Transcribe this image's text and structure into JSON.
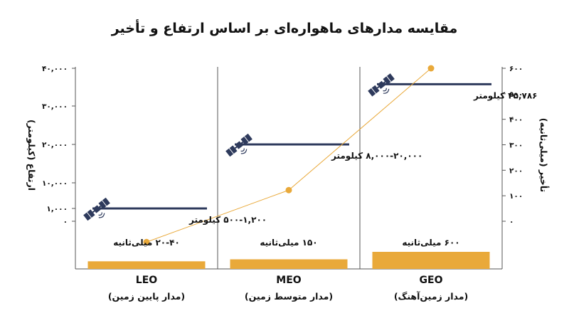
{
  "chart_data": {
    "type": "bar",
    "title": "مقایسه مدارهای ماهواره‌ای بر اساس ارتفاع و تأخیر",
    "left_axis": {
      "label": "ارتفاع (کیلومتر)",
      "ticks": [
        0,
        1000,
        10000,
        20000,
        30000,
        40000
      ],
      "tick_labels": [
        "۰",
        "۱,۰۰۰",
        "۱۰,۰۰۰",
        "۲۰,۰۰۰",
        "۳۰,۰۰۰",
        "۴۰,۰۰۰"
      ],
      "ylim": [
        0,
        40000
      ]
    },
    "right_axis": {
      "label": "تأخیر (میلی‌ثانیه)",
      "ticks": [
        0,
        100,
        200,
        300,
        400,
        500,
        600
      ],
      "tick_labels": [
        "۰",
        "۱۰۰",
        "۲۰۰",
        "۳۰۰",
        "۴۰۰",
        "۵۰۰",
        "۶۰۰"
      ],
      "ylim": [
        0,
        600
      ]
    },
    "categories": [
      {
        "name": "LEO",
        "subtitle": "(مدار پایین زمین)",
        "altitude_km": 1000,
        "altitude_label": "۵۰۰-۱,۲۰۰ کیلومتر",
        "latency_ms": 30,
        "latency_label": "۲۰-۴۰ میلی‌ثانیه"
      },
      {
        "name": "MEO",
        "subtitle": "(مدار متوسط زمین)",
        "altitude_km": 20000,
        "altitude_label": "۸,۰۰۰-۲۰,۰۰۰ کیلومتر",
        "latency_ms": 150,
        "latency_label": "۱۵۰ میلی‌ثانیه"
      },
      {
        "name": "GEO",
        "subtitle": "(مدار زمین‌آهنگ)",
        "altitude_km": 35786,
        "altitude_label": "۳۵,۷۸۶ کیلومتر",
        "latency_ms": 600,
        "latency_label": "۶۰۰ میلی‌ثانیه"
      }
    ],
    "colors": {
      "altitude_line": "#2e3a5c",
      "latency": "#e9a93a",
      "axis": "#555555"
    },
    "icons": {
      "satellite": "satellite-icon"
    }
  }
}
